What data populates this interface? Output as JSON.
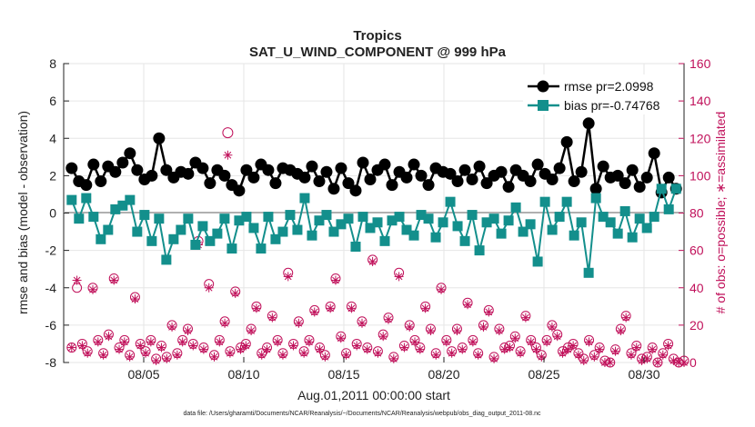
{
  "chart_data": {
    "type": "line",
    "title": "Tropics",
    "subtitle": "SAT_U_WIND_COMPONENT @ 999 hPa",
    "xlabel": "Aug.01,2011 00:00:00 start",
    "ylabel": "rmse and bias (model - observation)",
    "ylabel_right": "# of obs: o=possible; ∗=assimilated",
    "xlim": [
      1,
      32
    ],
    "ylim": [
      -8,
      8
    ],
    "ylim_right": [
      0,
      160
    ],
    "x_tick_labels": [
      "08/05",
      "08/10",
      "08/15",
      "08/20",
      "08/25",
      "08/30"
    ],
    "x_tick_positions": [
      5,
      10,
      15,
      20,
      25,
      30
    ],
    "y_ticks": [
      8,
      6,
      4,
      2,
      0,
      -2,
      -4,
      -6,
      -8
    ],
    "y_ticks_right": [
      160,
      140,
      120,
      100,
      80,
      60,
      40,
      20,
      0
    ],
    "legend_position": "top-right",
    "series": [
      {
        "name": "rmse pr=2.0998",
        "color": "#000000",
        "marker": "circle",
        "values": [
          2.4,
          1.7,
          1.5,
          2.6,
          1.7,
          2.5,
          2.2,
          2.7,
          3.2,
          2.3,
          1.8,
          2.0,
          4.0,
          2.3,
          1.9,
          2.2,
          2.1,
          2.7,
          2.4,
          1.6,
          2.3,
          2.0,
          1.5,
          1.2,
          2.3,
          1.9,
          2.6,
          2.3,
          1.6,
          2.4,
          2.3,
          2.1,
          1.9,
          2.5,
          1.7,
          2.2,
          1.3,
          2.4,
          1.6,
          1.2,
          2.7,
          1.8,
          2.3,
          2.6,
          1.5,
          2.2,
          1.9,
          2.6,
          2.0,
          1.5,
          2.4,
          2.2,
          2.1,
          1.7,
          2.3,
          1.8,
          2.5,
          1.6,
          2.0,
          2.2,
          1.4,
          2.3,
          2.0,
          1.7,
          2.6,
          2.1,
          1.8,
          2.4,
          3.8,
          1.7,
          2.2,
          4.8,
          1.3,
          2.5,
          1.9,
          2.0,
          1.6,
          2.3,
          1.4,
          1.9,
          3.2,
          1.1,
          1.9,
          1.3
        ],
        "bias": []
      },
      {
        "name": "bias pr=-0.74768",
        "color": "#138f8c",
        "marker": "square",
        "values": [
          0.7,
          -0.3,
          0.8,
          -0.2,
          -1.4,
          -0.9,
          0.2,
          0.4,
          0.7,
          -1.0,
          -0.1,
          -1.5,
          -0.3,
          -2.5,
          -1.4,
          -0.9,
          -0.3,
          -1.7,
          -0.7,
          -1.5,
          -1.1,
          -0.3,
          -1.9,
          -0.4,
          -0.2,
          -0.8,
          -1.9,
          -0.2,
          -1.4,
          -1.0,
          -0.1,
          -0.9,
          0.8,
          -1.2,
          -0.4,
          -0.1,
          -1.0,
          -0.6,
          -0.3,
          -1.8,
          -0.2,
          -0.8,
          -0.5,
          -1.5,
          -0.4,
          -0.2,
          -0.9,
          -1.2,
          -0.1,
          -0.3,
          -1.3,
          -0.5,
          0.6,
          -0.7,
          -1.5,
          -0.1,
          -2.0,
          -0.5,
          -0.3,
          -1.1,
          -0.4,
          0.3,
          -1.0,
          -0.6,
          -2.6,
          0.6,
          -0.9,
          -0.2,
          0.6,
          -1.2,
          -0.5,
          -3.2,
          0.8,
          -0.2,
          -0.5,
          -1.1,
          0.1,
          -1.3,
          -0.3,
          -0.8,
          -0.2,
          1.3,
          0.2,
          1.3
        ]
      }
    ],
    "obs_possible_note": "pink circles: number of possible observations (right axis)",
    "obs_assimilated_note": "pink asterisks: number of assimilated observations (right axis)",
    "possible": [
      8,
      40,
      10,
      6,
      40,
      12,
      5,
      15,
      45,
      8,
      12,
      4,
      35,
      10,
      6,
      12,
      2,
      9,
      3,
      20,
      5,
      12,
      18,
      10,
      65,
      8,
      42,
      4,
      12,
      22,
      6,
      38,
      8,
      10,
      18,
      30,
      5,
      8,
      25,
      12,
      5,
      48,
      10,
      22,
      6,
      12,
      28,
      8,
      4,
      30,
      45,
      14,
      5,
      30,
      10,
      22,
      8,
      55,
      6,
      15,
      24,
      3,
      48,
      9,
      20,
      12,
      8,
      30,
      18,
      5,
      40,
      12,
      6,
      18,
      8,
      32,
      12,
      5,
      20,
      28,
      3,
      18,
      8,
      9,
      14,
      6,
      25,
      12,
      8,
      4,
      12,
      20,
      15,
      6,
      8,
      10,
      5,
      2,
      12,
      4,
      8,
      1,
      0,
      7,
      18,
      25,
      5,
      9,
      2,
      3,
      8,
      0,
      5,
      10,
      2,
      0,
      1
    ],
    "assimilated": [
      8,
      44,
      9,
      5,
      39,
      11,
      4,
      14,
      44,
      7,
      11,
      3,
      34,
      9,
      5,
      11,
      1,
      8,
      2,
      19,
      4,
      11,
      17,
      9,
      63,
      7,
      40,
      3,
      11,
      21,
      5,
      37,
      7,
      9,
      17,
      29,
      4,
      7,
      24,
      11,
      4,
      46,
      9,
      21,
      5,
      11,
      27,
      7,
      3,
      29,
      44,
      13,
      4,
      29,
      9,
      21,
      7,
      54,
      5,
      14,
      23,
      2,
      46,
      8,
      19,
      11,
      7,
      29,
      17,
      4,
      39,
      11,
      5,
      17,
      7,
      31,
      11,
      4,
      19,
      27,
      2,
      17,
      7,
      8,
      13,
      5,
      24,
      11,
      7,
      3,
      11,
      19,
      14,
      5,
      7,
      9,
      4,
      1,
      11,
      3,
      7,
      0,
      0,
      6,
      17,
      24,
      4,
      8,
      1,
      2,
      7,
      0,
      4,
      9,
      1,
      0,
      0
    ],
    "special_points": {
      "possible_high": [
        {
          "x": 9.2,
          "y": 123
        }
      ],
      "assimilated_high": [
        {
          "x": 9.2,
          "y": 111
        }
      ]
    }
  },
  "footer": "data file: /Users/gharamti/Documents/NCAR/Reanalysis/~/Documents/NCAR/Reanalysis/webpub/obs_diag_output_2011-08.nc"
}
